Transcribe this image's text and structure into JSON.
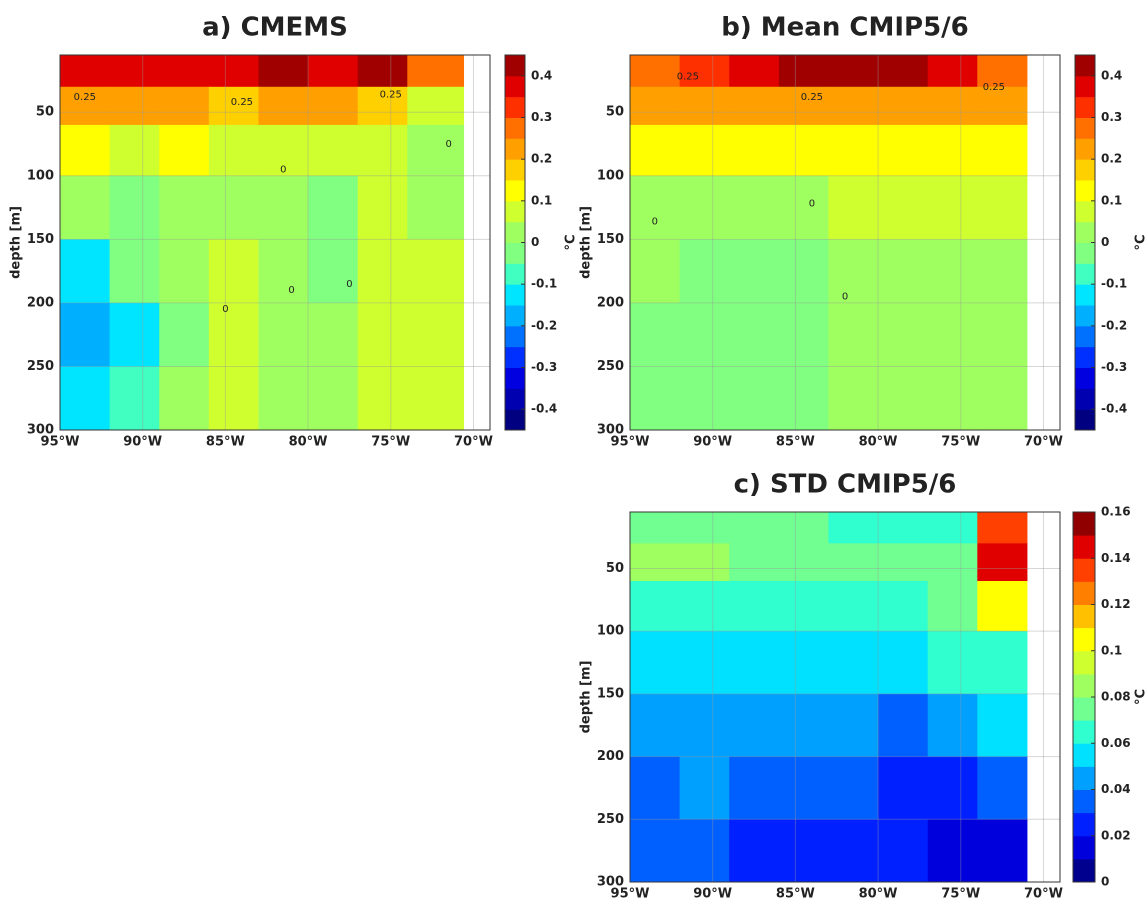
{
  "chart_data": [
    {
      "type": "heatmap",
      "title": "a) CMEMS",
      "ylabel": "depth [m]",
      "cbar_label": "°C",
      "xlim": [
        -95,
        -69
      ],
      "ylim": [
        300,
        5
      ],
      "xticks": [
        {
          "value": -95,
          "label": "95°W"
        },
        {
          "value": -90,
          "label": "90°W"
        },
        {
          "value": -85,
          "label": "85°W"
        },
        {
          "value": -80,
          "label": "80°W"
        },
        {
          "value": -75,
          "label": "75°W"
        },
        {
          "value": -70,
          "label": "70°W"
        }
      ],
      "yticks": [
        50,
        100,
        150,
        200,
        250,
        300
      ],
      "grid": true,
      "xbins": [
        -95,
        -92,
        -89,
        -86,
        -83,
        -80,
        -77,
        -74,
        -70.6
      ],
      "ybins": [
        5,
        30,
        60,
        100,
        150,
        200,
        250,
        300
      ],
      "z": [
        [
          0.35,
          0.35,
          0.35,
          0.35,
          0.4,
          0.35,
          0.4,
          0.3
        ],
        [
          0.2,
          0.2,
          0.2,
          0.15,
          0.2,
          0.2,
          0.15,
          0.05
        ],
        [
          0.1,
          0.08,
          0.1,
          0.08,
          0.08,
          0.05,
          0.08,
          0.02
        ],
        [
          0.0,
          -0.02,
          0.02,
          0.03,
          0.0,
          -0.05,
          0.05,
          0.03
        ],
        [
          -0.1,
          -0.05,
          0.0,
          0.05,
          0.0,
          -0.03,
          0.05,
          0.05
        ],
        [
          -0.2,
          -0.1,
          -0.02,
          0.08,
          0.0,
          0.02,
          0.06,
          0.08
        ],
        [
          -0.15,
          -0.08,
          0.0,
          0.08,
          0.0,
          0.03,
          0.06,
          0.06
        ]
      ],
      "clim": [
        -0.45,
        0.45
      ],
      "colors": [
        "#000080",
        "#0000b0",
        "#0000e0",
        "#0030ff",
        "#0070ff",
        "#00b0ff",
        "#00e5ff",
        "#40ffc0",
        "#80ff80",
        "#a0ff60",
        "#d0ff30",
        "#ffff00",
        "#ffd000",
        "#ffa000",
        "#ff7000",
        "#ff3000",
        "#e00000",
        "#a00000"
      ],
      "cticks": [
        -0.4,
        -0.3,
        -0.2,
        -0.1,
        0,
        0.1,
        0.2,
        0.3,
        0.4
      ],
      "annotations": [
        {
          "text": "0.25",
          "x": -93.5,
          "y": 38
        },
        {
          "text": "0.25",
          "x": -84,
          "y": 42
        },
        {
          "text": "0.25",
          "x": -75,
          "y": 36
        },
        {
          "text": "0",
          "x": -81.5,
          "y": 95
        },
        {
          "text": "0",
          "x": -85,
          "y": 205
        },
        {
          "text": "0",
          "x": -81,
          "y": 190
        },
        {
          "text": "0",
          "x": -77.5,
          "y": 185
        },
        {
          "text": "0",
          "x": -71.5,
          "y": 75
        }
      ]
    },
    {
      "type": "heatmap",
      "title": "b) Mean CMIP5/6",
      "ylabel": "depth [m]",
      "cbar_label": "°C",
      "xlim": [
        -95,
        -69
      ],
      "ylim": [
        300,
        5
      ],
      "xticks": [
        {
          "value": -95,
          "label": "95°W"
        },
        {
          "value": -90,
          "label": "90°W"
        },
        {
          "value": -85,
          "label": "85°W"
        },
        {
          "value": -80,
          "label": "80°W"
        },
        {
          "value": -75,
          "label": "75°W"
        },
        {
          "value": -70,
          "label": "70°W"
        }
      ],
      "yticks": [
        50,
        100,
        150,
        200,
        250,
        300
      ],
      "grid": true,
      "xbins": [
        -95,
        -92,
        -89,
        -86,
        -83,
        -80,
        -77,
        -74,
        -71
      ],
      "ybins": [
        5,
        30,
        60,
        100,
        150,
        200,
        250,
        300
      ],
      "z": [
        [
          0.3,
          0.33,
          0.37,
          0.4,
          0.4,
          0.4,
          0.35,
          0.3
        ],
        [
          0.2,
          0.2,
          0.22,
          0.22,
          0.22,
          0.22,
          0.22,
          0.2
        ],
        [
          0.12,
          0.12,
          0.12,
          0.12,
          0.12,
          0.12,
          0.12,
          0.12
        ],
        [
          0.03,
          0.02,
          0.02,
          0.03,
          0.05,
          0.06,
          0.07,
          0.07
        ],
        [
          0.0,
          -0.01,
          -0.01,
          -0.01,
          0.02,
          0.04,
          0.04,
          0.04
        ],
        [
          -0.01,
          -0.01,
          -0.01,
          -0.01,
          0.02,
          0.03,
          0.03,
          0.03
        ],
        [
          -0.01,
          -0.01,
          -0.01,
          -0.01,
          0.01,
          0.03,
          0.03,
          0.03
        ]
      ],
      "clim": [
        -0.45,
        0.45
      ],
      "colors": [
        "#000080",
        "#0000b0",
        "#0000e0",
        "#0030ff",
        "#0070ff",
        "#00b0ff",
        "#00e5ff",
        "#40ffc0",
        "#80ff80",
        "#a0ff60",
        "#d0ff30",
        "#ffff00",
        "#ffd000",
        "#ffa000",
        "#ff7000",
        "#ff3000",
        "#e00000",
        "#a00000"
      ],
      "cticks": [
        -0.4,
        -0.3,
        -0.2,
        -0.1,
        0,
        0.1,
        0.2,
        0.3,
        0.4
      ],
      "annotations": [
        {
          "text": "0.25",
          "x": -91.5,
          "y": 22
        },
        {
          "text": "0.25",
          "x": -84,
          "y": 38
        },
        {
          "text": "0.25",
          "x": -73,
          "y": 30
        },
        {
          "text": "0",
          "x": -84,
          "y": 122
        },
        {
          "text": "0",
          "x": -93.5,
          "y": 136
        },
        {
          "text": "0",
          "x": -82,
          "y": 195
        }
      ]
    },
    {
      "type": "heatmap",
      "title": "c) STD CMIP5/6",
      "ylabel": "depth [m]",
      "cbar_label": "°C",
      "xlim": [
        -95,
        -69
      ],
      "ylim": [
        300,
        5
      ],
      "xticks": [
        {
          "value": -95,
          "label": "95°W"
        },
        {
          "value": -90,
          "label": "90°W"
        },
        {
          "value": -85,
          "label": "85°W"
        },
        {
          "value": -80,
          "label": "80°W"
        },
        {
          "value": -75,
          "label": "75°W"
        },
        {
          "value": -70,
          "label": "70°W"
        }
      ],
      "yticks": [
        50,
        100,
        150,
        200,
        250,
        300
      ],
      "grid": true,
      "xbins": [
        -95,
        -92,
        -89,
        -86,
        -83,
        -80,
        -77,
        -74,
        -71
      ],
      "ybins": [
        5,
        30,
        60,
        100,
        150,
        200,
        250,
        300
      ],
      "z": [
        [
          0.07,
          0.07,
          0.07,
          0.07,
          0.06,
          0.06,
          0.06,
          0.13
        ],
        [
          0.08,
          0.08,
          0.07,
          0.07,
          0.07,
          0.07,
          0.07,
          0.14
        ],
        [
          0.06,
          0.06,
          0.06,
          0.06,
          0.06,
          0.06,
          0.07,
          0.1
        ],
        [
          0.05,
          0.05,
          0.05,
          0.05,
          0.05,
          0.05,
          0.06,
          0.06
        ],
        [
          0.04,
          0.04,
          0.04,
          0.04,
          0.04,
          0.035,
          0.04,
          0.05
        ],
        [
          0.03,
          0.04,
          0.035,
          0.03,
          0.03,
          0.025,
          0.02,
          0.03
        ],
        [
          0.03,
          0.03,
          0.025,
          0.025,
          0.02,
          0.02,
          0.015,
          0.015
        ]
      ],
      "clim": [
        0,
        0.16
      ],
      "colors": [
        "#00008f",
        "#0000dd",
        "#0020ff",
        "#0060ff",
        "#00a0ff",
        "#00e0ff",
        "#30ffd0",
        "#70ff90",
        "#a0ff60",
        "#d0ff30",
        "#ffff00",
        "#ffc000",
        "#ff8000",
        "#ff4000",
        "#e00000",
        "#900000"
      ],
      "cticks": [
        0,
        0.02,
        0.04,
        0.06,
        0.08,
        0.1,
        0.12,
        0.14,
        0.16
      ],
      "annotations": []
    }
  ]
}
